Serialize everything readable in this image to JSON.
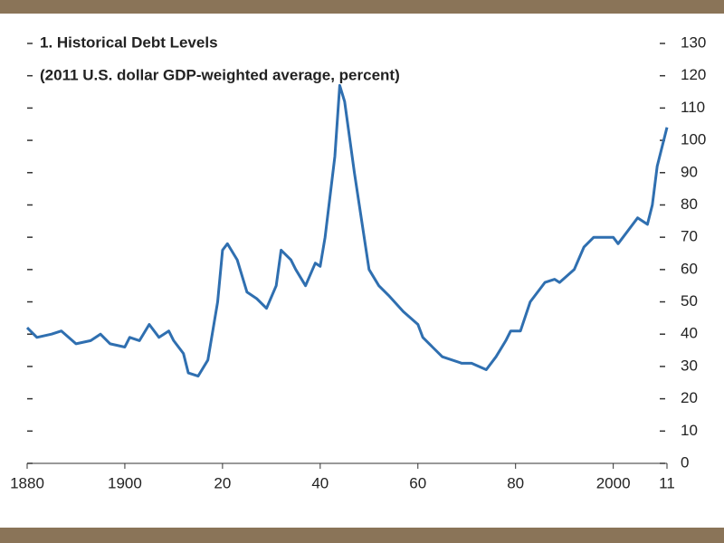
{
  "chart_data": {
    "type": "line",
    "title": "1. Historical Debt Levels",
    "subtitle": "(2011 U.S. dollar GDP-weighted average, percent)",
    "x": [
      1880,
      1882,
      1885,
      1887,
      1890,
      1893,
      1895,
      1897,
      1900,
      1901,
      1903,
      1905,
      1907,
      1909,
      1910,
      1912,
      1913,
      1915,
      1917,
      1919,
      1920,
      1921,
      1923,
      1925,
      1927,
      1929,
      1931,
      1932,
      1934,
      1935,
      1937,
      1939,
      1940,
      1941,
      1943,
      1944,
      1945,
      1947,
      1948,
      1950,
      1952,
      1954,
      1957,
      1960,
      1961,
      1963,
      1965,
      1969,
      1971,
      1974,
      1976,
      1978,
      1979,
      1981,
      1983,
      1986,
      1988,
      1989,
      1992,
      1994,
      1996,
      1998,
      2000,
      2001,
      2002,
      2005,
      2007,
      2008,
      2009,
      2011
    ],
    "series": [
      {
        "name": "Historical Debt Levels",
        "color": "#2f6fb0",
        "values": [
          42,
          39,
          40,
          41,
          37,
          38,
          40,
          37,
          36,
          39,
          38,
          43,
          39,
          41,
          38,
          34,
          28,
          27,
          32,
          50,
          66,
          68,
          63,
          53,
          51,
          48,
          55,
          66,
          63,
          60,
          55,
          62,
          61,
          70,
          95,
          117,
          112,
          90,
          80,
          60,
          55,
          52,
          47,
          43,
          39,
          36,
          33,
          31,
          31,
          29,
          33,
          38,
          41,
          41,
          50,
          56,
          57,
          56,
          60,
          67,
          70,
          70,
          70,
          68,
          70,
          76,
          74,
          80,
          92,
          104
        ]
      }
    ],
    "xlim": [
      1880,
      2011
    ],
    "xticks": [
      1880,
      1900,
      {
        "value": 1920,
        "label": "20"
      },
      {
        "value": 1940,
        "label": "40"
      },
      {
        "value": 1960,
        "label": "60"
      },
      {
        "value": 1980,
        "label": "80"
      },
      2000,
      {
        "value": 2011,
        "label": "11"
      }
    ],
    "ylim": [
      0,
      130
    ],
    "yticks": [
      0,
      10,
      20,
      30,
      40,
      50,
      60,
      70,
      80,
      90,
      100,
      110,
      120,
      130
    ]
  }
}
